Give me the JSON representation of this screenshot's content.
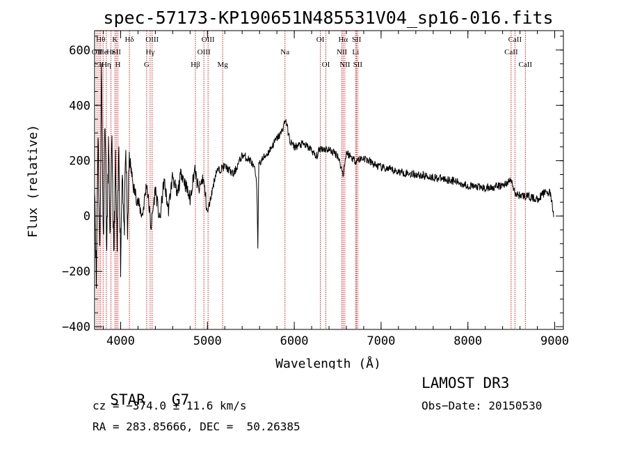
{
  "chart_data": {
    "type": "line",
    "title": "spec-57173-KP190651N485531V04_sp16-016.fits",
    "xlabel": "Wavelength (Å)",
    "ylabel": "Flux (relative)",
    "xlim": [
      3700,
      9100
    ],
    "ylim": [
      -410,
      670
    ],
    "x_ticks": [
      4000,
      5000,
      6000,
      7000,
      8000,
      9000
    ],
    "x_tick_labels": [
      "4000",
      "5000",
      "6000",
      "7000",
      "8000",
      "9000"
    ],
    "y_ticks": [
      -400,
      -200,
      0,
      200,
      400,
      600
    ],
    "y_tick_labels": [
      "−400",
      "−200",
      "0",
      "200",
      "400",
      "600"
    ],
    "line_color": "#000000",
    "marker_color": "#cc0000",
    "series": [
      {
        "name": "flux",
        "x": [
          3700,
          3720,
          3740,
          3760,
          3780,
          3800,
          3820,
          3840,
          3860,
          3880,
          3900,
          3920,
          3940,
          3960,
          3980,
          4000,
          4020,
          4040,
          4060,
          4080,
          4100,
          4150,
          4200,
          4250,
          4300,
          4350,
          4400,
          4450,
          4500,
          4550,
          4600,
          4650,
          4700,
          4750,
          4800,
          4850,
          4900,
          4950,
          5000,
          5100,
          5200,
          5300,
          5400,
          5500,
          5550,
          5570,
          5580,
          5590,
          5620,
          5700,
          5800,
          5850,
          5900,
          5950,
          6000,
          6100,
          6200,
          6250,
          6300,
          6400,
          6500,
          6563,
          6600,
          6700,
          6800,
          6900,
          7000,
          7200,
          7400,
          7600,
          7800,
          8000,
          8200,
          8400,
          8500,
          8540,
          8600,
          8700,
          8800,
          8900,
          8950,
          8990
        ],
        "y": [
          150,
          -250,
          320,
          -150,
          540,
          -100,
          380,
          -140,
          260,
          -90,
          300,
          -170,
          180,
          -120,
          250,
          -170,
          200,
          -80,
          230,
          -60,
          210,
          100,
          50,
          0,
          120,
          -40,
          100,
          -20,
          130,
          20,
          150,
          70,
          160,
          110,
          60,
          170,
          90,
          140,
          10,
          160,
          180,
          150,
          220,
          200,
          160,
          90,
          -110,
          180,
          200,
          230,
          280,
          300,
          350,
          270,
          250,
          260,
          240,
          210,
          245,
          240,
          220,
          150,
          230,
          200,
          210,
          190,
          175,
          160,
          150,
          140,
          130,
          110,
          100,
          110,
          130,
          80,
          75,
          70,
          60,
          90,
          80,
          0
        ]
      }
    ],
    "line_markers": [
      {
        "x": 3727,
        "label": "OII",
        "row": 1
      },
      {
        "x": 3750,
        "label": "CII",
        "row": 2
      },
      {
        "x": 3770,
        "label": "Hθ",
        "row": 0
      },
      {
        "x": 3798,
        "label": "He",
        "row": 1
      },
      {
        "x": 3835,
        "label": "Hη",
        "row": 2
      },
      {
        "x": 3889,
        "label": "He",
        "row": 1
      },
      {
        "x": 3934,
        "label": "K",
        "row": 0
      },
      {
        "x": 3950,
        "label": "SII",
        "row": 1
      },
      {
        "x": 3968,
        "label": "H",
        "row": 2
      },
      {
        "x": 4101,
        "label": "Hδ",
        "row": 0
      },
      {
        "x": 4300,
        "label": "G",
        "row": 2
      },
      {
        "x": 4340,
        "label": "Hγ",
        "row": 1
      },
      {
        "x": 4363,
        "label": "OIII",
        "row": 0
      },
      {
        "x": 4861,
        "label": "Hβ",
        "row": 2
      },
      {
        "x": 4959,
        "label": "OIII",
        "row": 1
      },
      {
        "x": 5007,
        "label": "OIII",
        "row": 0
      },
      {
        "x": 5175,
        "label": "Mg",
        "row": 2
      },
      {
        "x": 5893,
        "label": "Na",
        "row": 1
      },
      {
        "x": 6300,
        "label": "OI",
        "row": 0
      },
      {
        "x": 6364,
        "label": "OI",
        "row": 2
      },
      {
        "x": 6548,
        "label": "NII",
        "row": 1
      },
      {
        "x": 6563,
        "label": "Hα",
        "row": 0
      },
      {
        "x": 6583,
        "label": "NII",
        "row": 2
      },
      {
        "x": 6707,
        "label": "Li",
        "row": 1
      },
      {
        "x": 6717,
        "label": "SII",
        "row": 0
      },
      {
        "x": 6731,
        "label": "SII",
        "row": 2
      },
      {
        "x": 8498,
        "label": "CaII",
        "row": 1
      },
      {
        "x": 8542,
        "label": "CaII",
        "row": 0
      },
      {
        "x": 8662,
        "label": "CaII",
        "row": 2
      }
    ]
  },
  "info": {
    "class_label": "STAR",
    "subclass_label": "G7",
    "survey": "LAMOST DR3",
    "cz": "cz = −374.0 ± 11.6 km/s",
    "obs_date": "Obs−Date: 20150530",
    "coords": "RA = 283.85666, DEC =  50.26385"
  }
}
